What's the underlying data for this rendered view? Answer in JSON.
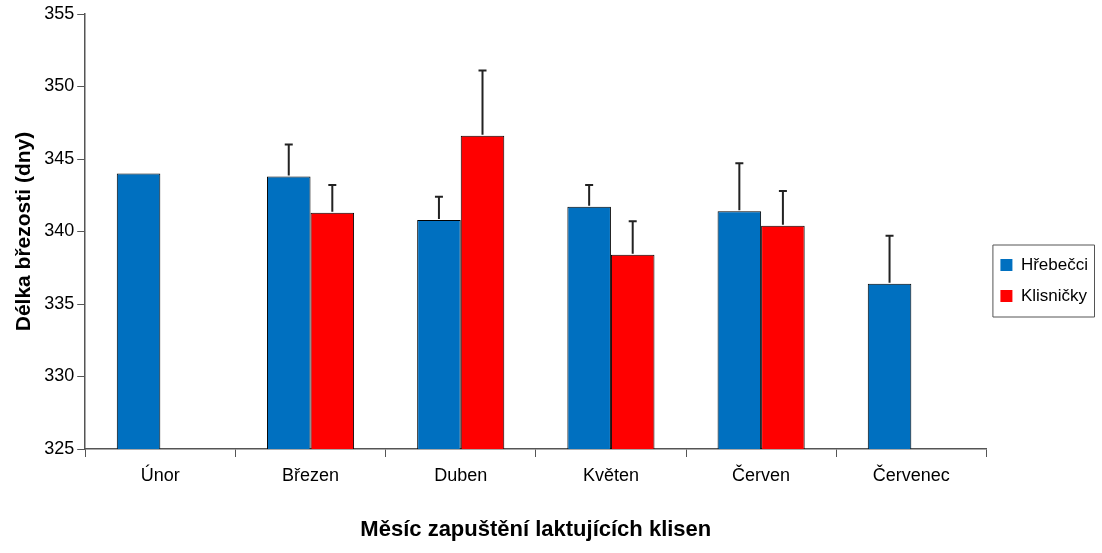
{
  "chart_data": {
    "type": "bar",
    "xlabel": "Měsíc zapuštění laktujících klisen",
    "ylabel": "Délka březosti (dny)",
    "categories": [
      "Únor",
      "Březen",
      "Duben",
      "Květen",
      "Červen",
      "Červenec"
    ],
    "series": [
      {
        "name": "Hřebečci",
        "color": "#0070c0",
        "values": [
          344.0,
          343.8,
          340.8,
          341.7,
          341.4,
          336.4
        ],
        "errors": [
          null,
          [
            343.8,
            346.0
          ],
          [
            340.8,
            342.4
          ],
          [
            341.7,
            343.2
          ],
          [
            341.4,
            344.7
          ],
          [
            336.4,
            339.7
          ]
        ]
      },
      {
        "name": "Klisničky",
        "color": "#ff0000",
        "values": [
          null,
          341.3,
          346.6,
          338.4,
          340.4,
          null
        ],
        "errors": [
          null,
          [
            341.3,
            343.2
          ],
          [
            346.6,
            351.1
          ],
          [
            338.4,
            340.7
          ],
          [
            340.4,
            342.8
          ],
          null
        ]
      }
    ],
    "ylim": [
      325,
      355
    ],
    "yticks": [
      325,
      330,
      335,
      340,
      345,
      350,
      355
    ],
    "grid": false,
    "legend": "right"
  }
}
